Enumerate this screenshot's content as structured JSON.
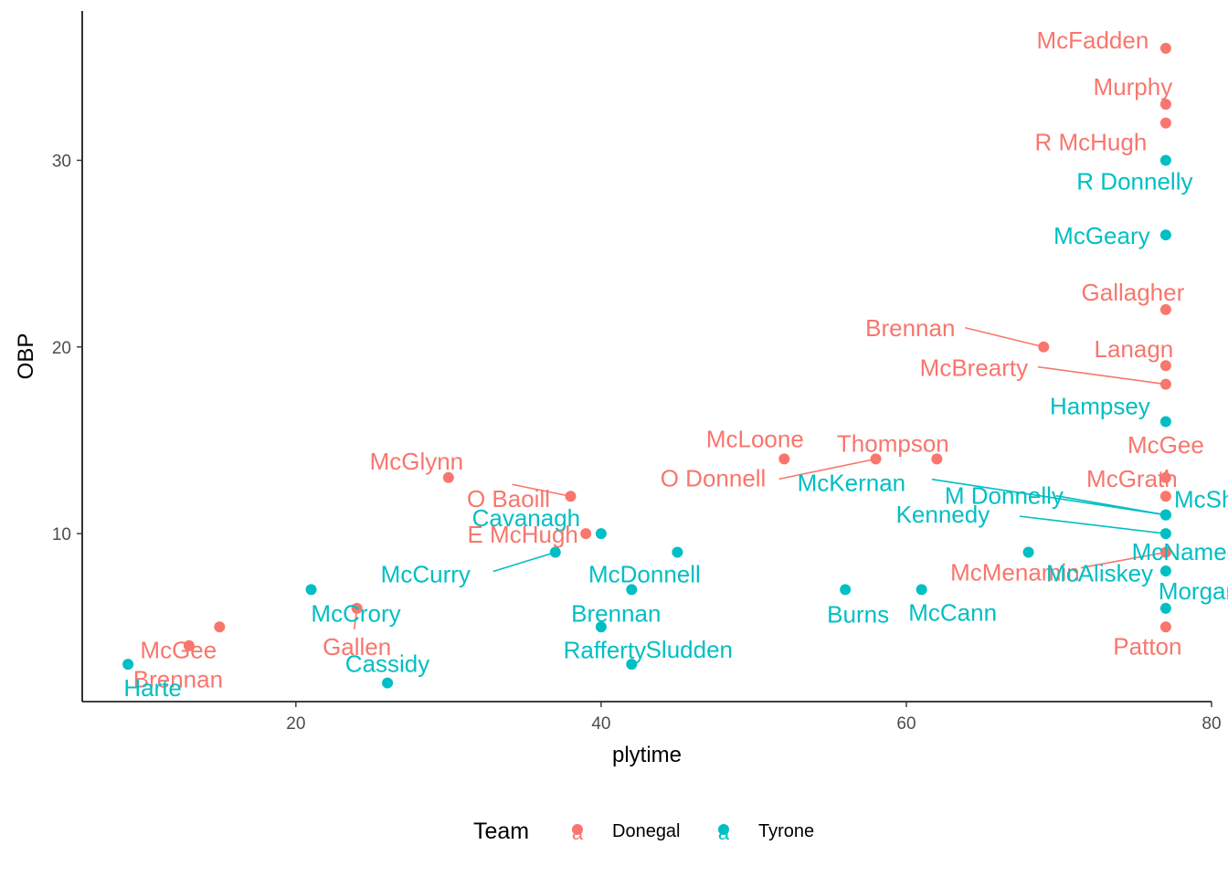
{
  "colors": {
    "Donegal": "#F8766D",
    "Tyrone": "#00BFC4"
  },
  "chart_data": {
    "type": "scatter",
    "xlabel": "plytime",
    "ylabel": "OBP",
    "xlim": [
      6,
      80
    ],
    "ylim": [
      1,
      38
    ],
    "xticks": [
      20,
      40,
      60,
      80
    ],
    "yticks": [
      10,
      20,
      30
    ],
    "grid": false,
    "legend": {
      "title": "Team",
      "placement": "bottom",
      "entries": [
        "Donegal",
        "Tyrone"
      ],
      "key_glyph": "a"
    },
    "points": [
      {
        "label": "McFadden",
        "team": "Donegal",
        "x": 77,
        "y": 36
      },
      {
        "label": "Murphy",
        "team": "Donegal",
        "x": 77,
        "y": 33
      },
      {
        "label": "R McHugh",
        "team": "Donegal",
        "x": 77,
        "y": 32
      },
      {
        "label": "R Donnelly",
        "team": "Tyrone",
        "x": 77,
        "y": 30
      },
      {
        "label": "McGeary",
        "team": "Tyrone",
        "x": 77,
        "y": 26
      },
      {
        "label": "Gallagher",
        "team": "Donegal",
        "x": 77,
        "y": 22
      },
      {
        "label": "Brennan",
        "team": "Donegal",
        "x": 69,
        "y": 20
      },
      {
        "label": "Lanagn",
        "team": "Donegal",
        "x": 77,
        "y": 19
      },
      {
        "label": "McBrearty",
        "team": "Donegal",
        "x": 77,
        "y": 18
      },
      {
        "label": "Hampsey",
        "team": "Tyrone",
        "x": 77,
        "y": 16
      },
      {
        "label": "McLoone",
        "team": "Donegal",
        "x": 52,
        "y": 14
      },
      {
        "label": "O Donnell",
        "team": "Donegal",
        "x": 58,
        "y": 14
      },
      {
        "label": "Thompson",
        "team": "Donegal",
        "x": 62,
        "y": 14
      },
      {
        "label": "McGee",
        "team": "Donegal",
        "x": 77,
        "y": 13
      },
      {
        "label": "McGlynn",
        "team": "Donegal",
        "x": 30,
        "y": 13
      },
      {
        "label": "McGrath",
        "team": "Donegal",
        "x": 77,
        "y": 12
      },
      {
        "label": "O Baoill",
        "team": "Donegal",
        "x": 38,
        "y": 12
      },
      {
        "label": "McKernan",
        "team": "Tyrone",
        "x": 77,
        "y": 11
      },
      {
        "label": "M Donnelly",
        "team": "Tyrone",
        "x": 77,
        "y": 11
      },
      {
        "label": "McShane",
        "team": "Tyrone",
        "x": 77,
        "y": 11
      },
      {
        "label": "Cavanagh",
        "team": "Tyrone",
        "x": 40,
        "y": 10
      },
      {
        "label": "E McHugh",
        "team": "Donegal",
        "x": 39,
        "y": 10
      },
      {
        "label": "Kennedy",
        "team": "Tyrone",
        "x": 77,
        "y": 10
      },
      {
        "label": "McMenamin",
        "team": "Donegal",
        "x": 77,
        "y": 9
      },
      {
        "label": "McAliskey",
        "team": "Tyrone",
        "x": 68,
        "y": 9
      },
      {
        "label": "McDonnell",
        "team": "Tyrone",
        "x": 45,
        "y": 9
      },
      {
        "label": "McCurry",
        "team": "Tyrone",
        "x": 37,
        "y": 9
      },
      {
        "label": "McNamee",
        "team": "Tyrone",
        "x": 77,
        "y": 8
      },
      {
        "label": "McCrory",
        "team": "Tyrone",
        "x": 21,
        "y": 7
      },
      {
        "label": "Brennan",
        "team": "Tyrone",
        "x": 42,
        "y": 7
      },
      {
        "label": "Burns",
        "team": "Tyrone",
        "x": 56,
        "y": 7
      },
      {
        "label": "McCann",
        "team": "Tyrone",
        "x": 61,
        "y": 7
      },
      {
        "label": "Gallen",
        "team": "Donegal",
        "x": 24,
        "y": 6
      },
      {
        "label": "Morgan",
        "team": "Tyrone",
        "x": 77,
        "y": 6
      },
      {
        "label": "McGee",
        "team": "Donegal",
        "x": 15,
        "y": 5
      },
      {
        "label": "Rafferty",
        "team": "Tyrone",
        "x": 40,
        "y": 5
      },
      {
        "label": "Patton",
        "team": "Donegal",
        "x": 77,
        "y": 5
      },
      {
        "label": "Brennan",
        "team": "Donegal",
        "x": 13,
        "y": 4
      },
      {
        "label": "Harte",
        "team": "Tyrone",
        "x": 9,
        "y": 3
      },
      {
        "label": "Sludden",
        "team": "Tyrone",
        "x": 42,
        "y": 3
      },
      {
        "label": "Cassidy",
        "team": "Tyrone",
        "x": 26,
        "y": 2
      }
    ]
  }
}
